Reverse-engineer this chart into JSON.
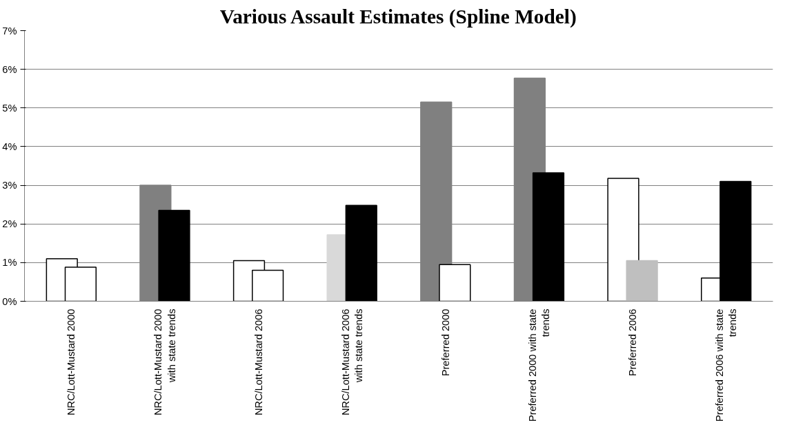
{
  "chart_data": {
    "type": "bar",
    "title": "Various Assault Estimates (Spline Model)",
    "categories": [
      "NRC/Lott-Mustard 2000",
      "NRC/Lott-Mustard 2000 with state trends",
      "NRC/Lott-Mustard 2006",
      "NRC/Lott-Mustard 2006 with state trends",
      "Preferred 2000",
      "Preferred 2000 with state trends",
      "Preferred 2006",
      "Preferred 2006 with state trends"
    ],
    "series": [
      {
        "values": [
          1.1,
          3.0,
          1.05,
          1.72,
          5.15,
          5.77,
          3.18,
          0.6
        ],
        "colors": [
          "#ffffff",
          "#808080",
          "#ffffff",
          "#d9d9d9",
          "#808080",
          "#808080",
          "#ffffff",
          "#ffffff"
        ]
      },
      {
        "values": [
          0.88,
          2.35,
          0.8,
          2.48,
          0.95,
          3.32,
          1.05,
          3.1
        ],
        "colors": [
          "#ffffff",
          "#000000",
          "#ffffff",
          "#000000",
          "#ffffff",
          "#000000",
          "#bfbfbf",
          "#000000"
        ]
      }
    ],
    "ylim": [
      0,
      7
    ],
    "yticks": [
      {
        "value": 0,
        "label": "0%"
      },
      {
        "value": 1,
        "label": "1%"
      },
      {
        "value": 2,
        "label": "2%"
      },
      {
        "value": 3,
        "label": "3%"
      },
      {
        "value": 4,
        "label": "4%"
      },
      {
        "value": 5,
        "label": "5%"
      },
      {
        "value": 6,
        "label": "6%"
      },
      {
        "value": 7,
        "label": "7%"
      }
    ],
    "grid": "y"
  }
}
